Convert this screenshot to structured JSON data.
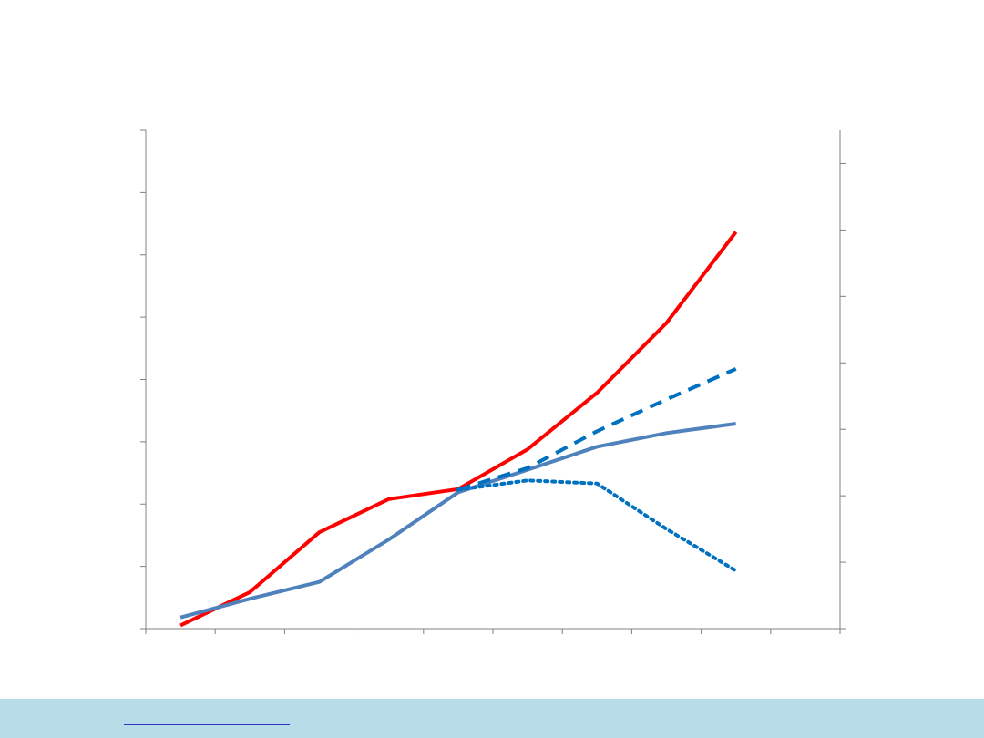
{
  "chart_data": {
    "type": "line",
    "title": "",
    "xlabel": "",
    "ylabel": "",
    "y2label": "",
    "x": [
      0,
      1,
      2,
      3,
      4,
      5,
      6,
      7,
      8,
      9
    ],
    "xlim": [
      -0.5,
      9.5
    ],
    "ylim": [
      0,
      8
    ],
    "y2lim": [
      0,
      7.5
    ],
    "grid": false,
    "legend": "none",
    "series": [
      {
        "axis": "y2",
        "color": "#ff0000",
        "style": "solid",
        "values": [
          0.05,
          0.55,
          1.45,
          1.95,
          2.1,
          2.7,
          3.55,
          4.6,
          5.97,
          null
        ]
      },
      {
        "axis": "y",
        "color": "#4f81bd",
        "style": "solid",
        "values": [
          0.18,
          0.48,
          0.75,
          1.43,
          2.19,
          2.55,
          2.92,
          3.14,
          3.29,
          null
        ]
      },
      {
        "axis": "y",
        "color": "#0070c0",
        "style": "dashed",
        "values": [
          null,
          null,
          null,
          null,
          2.23,
          2.58,
          3.17,
          3.68,
          4.17,
          null
        ]
      },
      {
        "axis": "y",
        "color": "#0070c0",
        "style": "dotted",
        "values": [
          null,
          null,
          null,
          null,
          2.23,
          2.38,
          2.33,
          1.6,
          0.93,
          null
        ]
      }
    ]
  },
  "footer": {
    "background": "#b7dde8",
    "link_color": "#3333cc"
  }
}
